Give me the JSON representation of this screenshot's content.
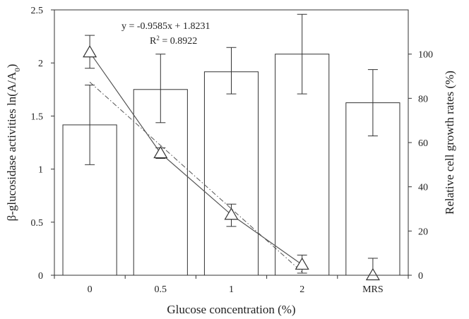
{
  "chart_data": {
    "type": "bar",
    "xlabel": "Glucose concentration (%)",
    "ylabel_left": {
      "prefix": "β-glucosidase activities ln(A/A",
      "sub": "0",
      "suffix": ")"
    },
    "ylabel_right": "Relative cell growth rates (%)",
    "categories": [
      "0",
      "0.5",
      "1",
      "2",
      "MRS"
    ],
    "left_axis": {
      "min": 0,
      "max": 2.5,
      "ticks": [
        "0",
        "0.5",
        "1",
        "1.5",
        "2",
        "2.5"
      ]
    },
    "right_axis": {
      "min": 0,
      "max": 120,
      "ticks": [
        "0",
        "20",
        "40",
        "60",
        "80",
        "100"
      ]
    },
    "bars": {
      "axis": "right",
      "values": [
        68,
        84,
        92,
        100,
        78
      ],
      "error_low": [
        50,
        69,
        82,
        82,
        63
      ],
      "error_high": [
        86,
        100,
        103,
        118,
        93
      ]
    },
    "triangles": {
      "axis": "left",
      "values": [
        2.1,
        1.15,
        0.57,
        0.1,
        0.0
      ],
      "error_low": [
        1.95,
        1.1,
        0.46,
        0.02,
        null
      ],
      "error_high": [
        2.26,
        1.2,
        0.67,
        0.19,
        0.16
      ]
    },
    "trendline": {
      "axis": "left",
      "x_index": [
        0,
        3
      ],
      "y": [
        1.82,
        0.03
      ],
      "equation": "y = -0.9585x + 1.8231",
      "r2_prefix": "R",
      "r2_sup": "2",
      "r2_suffix": " = 0.8922"
    },
    "grid": false,
    "legend": "none",
    "colors": {
      "bar_fill": "#ffffff",
      "line": "#555555",
      "axis": "#333333"
    }
  }
}
